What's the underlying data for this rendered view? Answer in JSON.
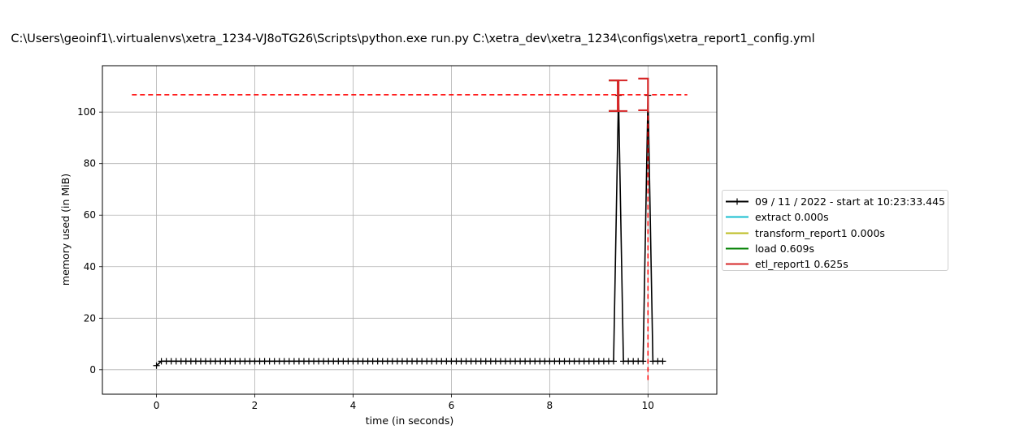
{
  "chart_data": {
    "type": "line",
    "title": "C:\\Users\\geoinf1\\.virtualenvs\\xetra_1234-VJ8oTG26\\Scripts\\python.exe run.py C:\\xetra_dev\\xetra_1234\\configs\\xetra_report1_config.yml",
    "xlabel": "time (in seconds)",
    "ylabel": "memory used (in MiB)",
    "xlim": [
      -1.1,
      11.4
    ],
    "ylim": [
      -9.5,
      118
    ],
    "xticks": [
      0,
      2,
      4,
      6,
      8,
      10
    ],
    "yticks": [
      0,
      20,
      40,
      60,
      80,
      100
    ],
    "grid": true,
    "legend_position": "right, outside plot",
    "series": [
      {
        "name": "09 / 11 / 2022 - start at 10:23:33.445",
        "color": "#000000",
        "sample_start": 0.0,
        "sample_step": 0.1,
        "baseline": 3.3,
        "peaks": [
          {
            "x": 9.4,
            "y": 106.5
          },
          {
            "x": 10.0,
            "y": 106.5
          }
        ]
      },
      {
        "name": "extract 0.000s",
        "color": "#17becf"
      },
      {
        "name": "transform_report1 0.000s",
        "color": "#bcbd22"
      },
      {
        "name": "load 0.609s",
        "color": "#008000"
      },
      {
        "name": "etl_report1 0.625s",
        "color": "#d62728"
      }
    ],
    "max_memory_line": {
      "y": 106.7,
      "x_range": [
        -0.5,
        10.8
      ],
      "color": "#ff0000"
    },
    "max_memory_marker": {
      "x": 10.0,
      "y_range": [
        -4,
        106.7
      ]
    },
    "brackets": [
      {
        "color": "#bcbd22",
        "x": 9.4,
        "y_low": 100.4,
        "y_high": 112.3,
        "side": "left"
      },
      {
        "color": "#008000",
        "x": 9.4,
        "y_low": 100.4,
        "y_high": 112.3,
        "side": "left"
      },
      {
        "color": "#d62728",
        "x": 9.4,
        "y_low": 100.4,
        "y_high": 112.3,
        "side": "left"
      },
      {
        "color": "#d62728",
        "x": 10.0,
        "y_low": 100.7,
        "y_high": 113.0,
        "side": "right"
      }
    ]
  }
}
